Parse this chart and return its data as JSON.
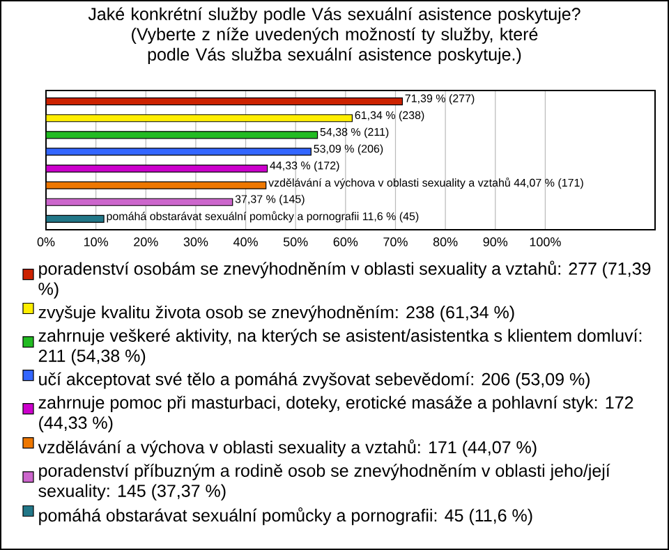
{
  "chart_data": {
    "type": "bar",
    "orientation": "horizontal",
    "title": "Jaké konkrétní služby podle Vás sexuální asistence poskytuje?",
    "subtitle": "(Vyberte z níže uvedených možností ty služby, které podle Vás služba sexuální asistence poskytuje.)",
    "categories": [
      null
    ],
    "series": [
      {
        "name": "poradenství osobám se znevýhodněním v oblasti sexuality a vztahů: 277 (71,39 %)",
        "color": "#cc2200",
        "values": [
          71.39
        ],
        "value_labels": [
          "71,39 % (277)"
        ]
      },
      {
        "name": "zvyšuje kvalitu života osob se znevýhodněním: 238 (61,34 %)",
        "color": "#ffee00",
        "values": [
          61.34
        ],
        "value_labels": [
          "61,34 % (238)"
        ]
      },
      {
        "name": "zahrnuje veškeré aktivity, na kterých se asistent/asistentka s klientem domluví: 211 (54,38 %)",
        "color": "#22bb22",
        "values": [
          54.38
        ],
        "value_labels": [
          "54,38 % (211)"
        ]
      },
      {
        "name": "učí akceptovat své tělo a pomáhá zvyšovat sebevědomí: 206 (53,09 %)",
        "color": "#3366ff",
        "values": [
          53.09
        ],
        "value_labels": [
          "53,09 % (206)"
        ]
      },
      {
        "name": "zahrnuje pomoc při masturbaci, doteky, erotické masáže a pohlavní styk: 172 (44,33 %)",
        "color": "#cc00cc",
        "values": [
          44.33
        ],
        "value_labels": [
          "44,33 % (172)"
        ]
      },
      {
        "name": "vzdělávání a výchova v oblasti sexuality a vztahů: 171 (44,07 %)",
        "color": "#ee7700",
        "values": [
          44.07
        ],
        "value_labels": [
          "vzdělávání a výchova v oblasti sexuality a vztahů 44,07 % (171)"
        ]
      },
      {
        "name": "poradenství příbuzným a rodině osob se znevýhodněním v oblasti jeho/její sexuality: 145 (37,37 %)",
        "color": "#cc66cc",
        "values": [
          37.37
        ],
        "value_labels": [
          "37,37 % (145)"
        ]
      },
      {
        "name": "pomáhá obstarávat sexuální pomůcky a pornografii: 45 (11,6 %)",
        "color": "#227788",
        "values": [
          11.6
        ],
        "value_labels": [
          "pomáhá obstarávat sexuální pomůcky a pornografii 11,6 % (45)"
        ]
      }
    ],
    "xlim": [
      0,
      122
    ],
    "xticks": [
      {
        "value": 0,
        "label": "0%"
      },
      {
        "value": 10,
        "label": "10%"
      },
      {
        "value": 20,
        "label": "20%"
      },
      {
        "value": 30,
        "label": "30%"
      },
      {
        "value": 40,
        "label": "40%"
      },
      {
        "value": 50,
        "label": "50%"
      },
      {
        "value": 60,
        "label": "60%"
      },
      {
        "value": 70,
        "label": "70%"
      },
      {
        "value": 80,
        "label": "80%"
      },
      {
        "value": 90,
        "label": "90%"
      },
      {
        "value": 100,
        "label": "100%"
      }
    ],
    "grid": "x",
    "tick_labels": "x",
    "legend": "bottom"
  }
}
